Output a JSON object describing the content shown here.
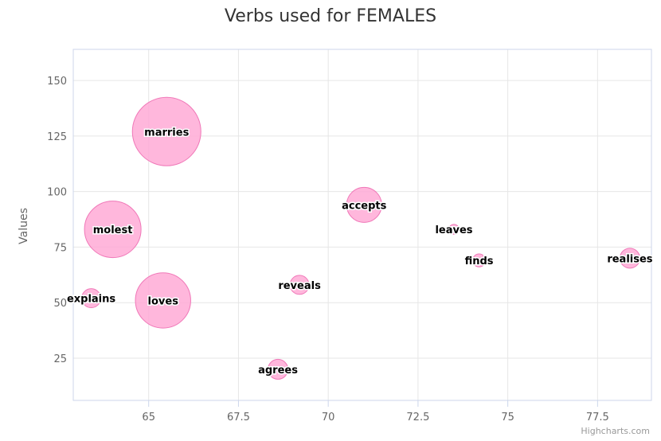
{
  "chart_data": {
    "type": "scatter",
    "subtype": "bubble",
    "title": "Verbs used for FEMALES",
    "xlabel": "",
    "ylabel": "Values",
    "xlim": [
      62.9,
      79
    ],
    "ylim": [
      6,
      164
    ],
    "xticks": [
      65,
      67.5,
      70,
      72.5,
      75,
      77.5
    ],
    "yticks": [
      25,
      50,
      75,
      100,
      125,
      150
    ],
    "grid": true,
    "legend": "none",
    "colors": {
      "bubble_fill": "#ffaad6",
      "bubble_stroke": "#f078b8",
      "grid": "#e6e6e6",
      "axis": "#ccd6eb"
    },
    "series": [
      {
        "points": [
          {
            "label": "marries",
            "x": 65.5,
            "y": 127,
            "z": 90
          },
          {
            "label": "molest",
            "x": 64.0,
            "y": 83,
            "z": 58
          },
          {
            "label": "loves",
            "x": 65.4,
            "y": 51,
            "z": 55
          },
          {
            "label": "accepts",
            "x": 71.0,
            "y": 94,
            "z": 18
          },
          {
            "label": "explains",
            "x": 63.4,
            "y": 52,
            "z": 3
          },
          {
            "label": "reveals",
            "x": 69.2,
            "y": 58,
            "z": 3
          },
          {
            "label": "agrees",
            "x": 68.6,
            "y": 20,
            "z": 3.5
          },
          {
            "label": "leaves",
            "x": 73.5,
            "y": 83,
            "z": 0.1
          },
          {
            "label": "finds",
            "x": 74.2,
            "y": 69,
            "z": 0.6
          },
          {
            "label": "realises",
            "x": 78.4,
            "y": 70,
            "z": 3.5
          }
        ]
      }
    ]
  },
  "credits": "Highcharts.com"
}
